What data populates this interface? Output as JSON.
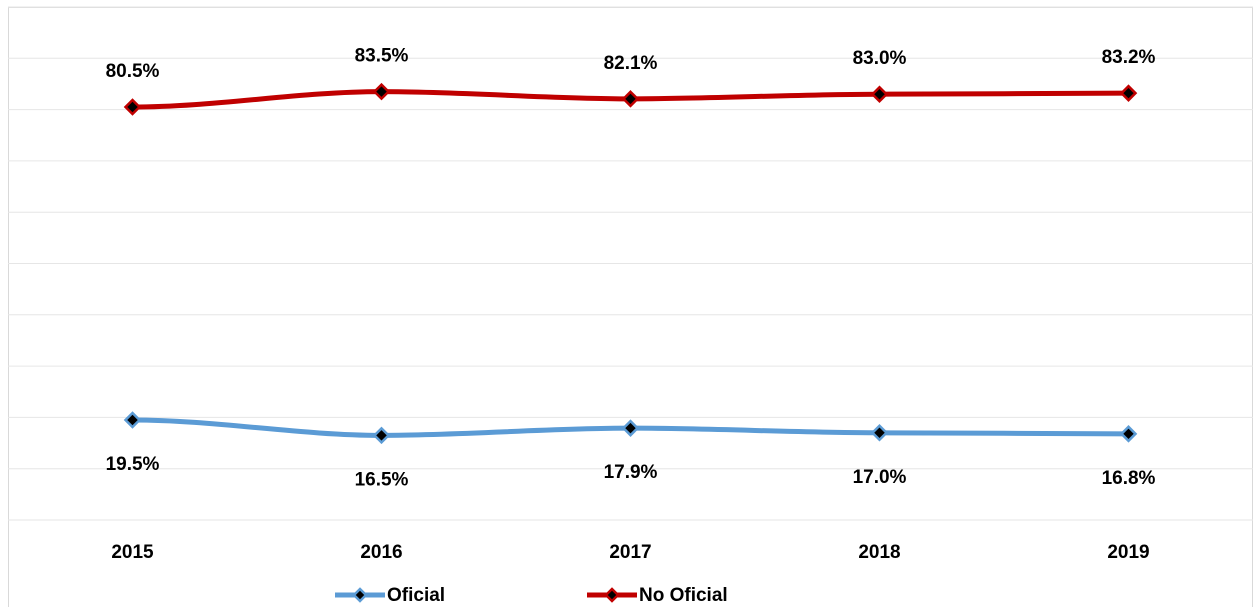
{
  "chart_data": {
    "type": "line",
    "categories": [
      "2015",
      "2016",
      "2017",
      "2018",
      "2019"
    ],
    "series": [
      {
        "name": "Oficial",
        "color": "#5b9bd5",
        "values": [
          19.5,
          16.5,
          17.9,
          17.0,
          16.8
        ],
        "value_labels": [
          "19.5%",
          "16.5%",
          "17.9%",
          "17.0%",
          "16.8%"
        ]
      },
      {
        "name": "No Oficial",
        "color": "#c00000",
        "values": [
          80.5,
          83.5,
          82.1,
          83.0,
          83.2
        ],
        "value_labels": [
          "80.5%",
          "83.5%",
          "82.1%",
          "83.0%",
          "83.2%"
        ]
      }
    ],
    "ylim": [
      0,
      100
    ],
    "yticks": [
      0,
      10,
      20,
      30,
      40,
      50,
      60,
      70,
      80,
      90,
      100
    ],
    "grid": true
  }
}
